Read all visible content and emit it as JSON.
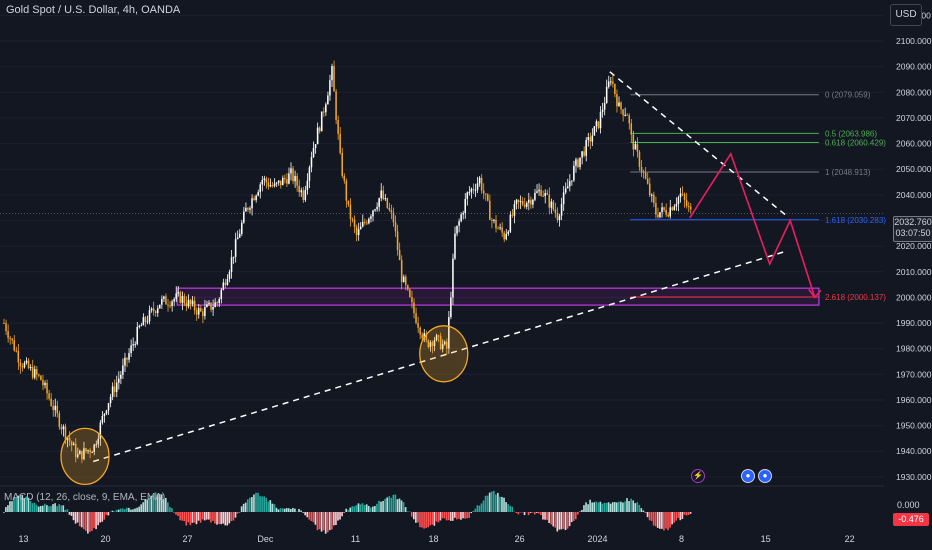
{
  "header": {
    "title": "Gold Spot / U.S. Dollar, 4h, OANDA",
    "currency_button": "USD"
  },
  "price_tag": {
    "price": "2032.760",
    "countdown": "03:07:50"
  },
  "macd": {
    "label": "MACD (12, 26, close, 9, EMA, EMA)",
    "zero_value": "0.000",
    "current_value": "-0.476"
  },
  "events": {
    "bolt_icon": "lightning-icon",
    "flag_icon": "us-flag-icon"
  },
  "colors": {
    "bull": "#ffffff",
    "bear": "#f5a623",
    "background": "#131722",
    "zone": "#9c27b0",
    "projection": "#e91e63",
    "fib_blue": "#2962ff",
    "fib_green": "#4caf50",
    "fib_gray": "#787b86",
    "fib_red": "#f23645"
  },
  "chart_data": {
    "type": "candlestick",
    "title": "Gold Spot / U.S. Dollar, 4h, OANDA",
    "y_axis": {
      "ticks": [
        "2110.000",
        "2100.000",
        "2090.000",
        "2080.000",
        "2070.000",
        "2060.000",
        "2050.000",
        "2040.000",
        "2030.000",
        "2020.000",
        "2010.000",
        "2000.000",
        "1990.000",
        "1980.000",
        "1970.000",
        "1960.000",
        "1950.000",
        "1940.000",
        "1930.000"
      ],
      "range": [
        1928,
        2116
      ]
    },
    "x_axis": {
      "labels": [
        "13",
        "20",
        "27",
        "Dec",
        "11",
        "18",
        "26",
        "2024",
        "8",
        "15",
        "22"
      ],
      "label_index": [
        10,
        50,
        90,
        128,
        172,
        210,
        252,
        290,
        331,
        372,
        413
      ]
    },
    "price_path": [
      [
        0,
        1990
      ],
      [
        8,
        1975
      ],
      [
        18,
        1968
      ],
      [
        28,
        1950
      ],
      [
        36,
        1938
      ],
      [
        44,
        1942
      ],
      [
        50,
        1958
      ],
      [
        58,
        1972
      ],
      [
        66,
        1988
      ],
      [
        76,
        1998
      ],
      [
        86,
        2000
      ],
      [
        96,
        1994
      ],
      [
        104,
        1998
      ],
      [
        110,
        2012
      ],
      [
        118,
        2034
      ],
      [
        126,
        2046
      ],
      [
        132,
        2043
      ],
      [
        140,
        2048
      ],
      [
        146,
        2040
      ],
      [
        150,
        2056
      ],
      [
        155,
        2070
      ],
      [
        160,
        2088
      ],
      [
        164,
        2054
      ],
      [
        168,
        2034
      ],
      [
        172,
        2024
      ],
      [
        178,
        2032
      ],
      [
        184,
        2040
      ],
      [
        190,
        2030
      ],
      [
        194,
        2008
      ],
      [
        200,
        1994
      ],
      [
        206,
        1982
      ],
      [
        210,
        1984
      ],
      [
        216,
        1980
      ],
      [
        220,
        2024
      ],
      [
        226,
        2040
      ],
      [
        232,
        2046
      ],
      [
        238,
        2030
      ],
      [
        244,
        2024
      ],
      [
        250,
        2036
      ],
      [
        256,
        2038
      ],
      [
        262,
        2042
      ],
      [
        270,
        2032
      ],
      [
        278,
        2050
      ],
      [
        286,
        2062
      ],
      [
        290,
        2068
      ],
      [
        296,
        2086
      ],
      [
        300,
        2074
      ],
      [
        304,
        2072
      ],
      [
        306,
        2062
      ],
      [
        312,
        2048
      ],
      [
        318,
        2033
      ],
      [
        324,
        2034
      ],
      [
        330,
        2040
      ],
      [
        335,
        2033
      ]
    ],
    "fibonacci": [
      {
        "level": "0",
        "value": 2079.059,
        "color": "#787b86"
      },
      {
        "level": "0.5",
        "value": 2063.986,
        "color": "#4caf50"
      },
      {
        "level": "0.618",
        "value": 2060.429,
        "color": "#4caf50"
      },
      {
        "level": "1",
        "value": 2048.913,
        "color": "#787b86"
      },
      {
        "level": "1.618",
        "value": 2030.283,
        "color": "#2962ff"
      },
      {
        "level": "2.618",
        "value": 2000.137,
        "color": "#f23645"
      }
    ],
    "fib_labels": [
      "0 (2079.059)",
      "0.5 (2063.986)",
      "0.618 (2060.429)",
      "1 (2048.913)",
      "1.618 (2030.283)",
      "2.618 (2000.137)"
    ],
    "support_zone": {
      "top": 2003.6,
      "bottom": 1997
    },
    "descending_trendline": {
      "from": [
        296,
        2088
      ],
      "to": [
        382,
        2032
      ]
    },
    "ascending_trendline": {
      "from": [
        44,
        1936
      ],
      "to": [
        382,
        2018
      ]
    },
    "projected_path": [
      [
        335,
        2031
      ],
      [
        355,
        2056
      ],
      [
        374,
        2013
      ],
      [
        384,
        2030
      ],
      [
        396,
        2000
      ]
    ],
    "circles": [
      {
        "x": 40,
        "y": 1938
      },
      {
        "x": 215,
        "y": 1978
      }
    ]
  }
}
